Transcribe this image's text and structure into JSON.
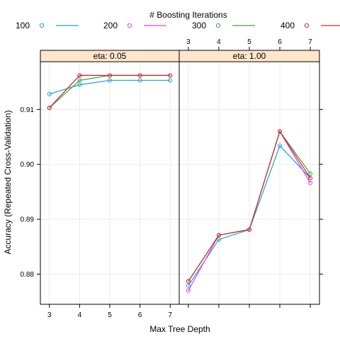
{
  "chart_data": {
    "type": "line",
    "legend": {
      "title": "# Boosting Iterations",
      "placement": "top",
      "entries": [
        {
          "label": "100",
          "color": "#1f9fd6"
        },
        {
          "label": "200",
          "color": "#e83ff0"
        },
        {
          "label": "300",
          "color": "#3aa63a"
        },
        {
          "label": "400",
          "color": "#d12a2a"
        }
      ]
    },
    "xlabel": "Max Tree Depth",
    "ylabel": "Accuracy (Repeated Cross-Validation)",
    "x_ticks": [
      3,
      4,
      5,
      6,
      7
    ],
    "y_ticks": [
      0.88,
      0.89,
      0.9,
      0.91
    ],
    "y_tick_labels": [
      "0.88",
      "0.89",
      "0.90",
      "0.91"
    ],
    "ylim": [
      0.8745,
      0.9187
    ],
    "xlim": [
      2.7,
      7.3
    ],
    "grid": true,
    "panels": [
      {
        "strip": "eta: 0.05",
        "series": [
          {
            "name": "100",
            "x": [
              3,
              4,
              5,
              6,
              7
            ],
            "y": [
              0.9128,
              0.9145,
              0.9153,
              0.9153,
              0.9153
            ]
          },
          {
            "name": "200",
            "x": [
              3,
              4,
              5,
              6,
              7
            ],
            "y": [
              0.9103,
              0.9162,
              0.9162,
              0.9162,
              0.9162
            ]
          },
          {
            "name": "300",
            "x": [
              3,
              4,
              5,
              6,
              7
            ],
            "y": [
              0.9103,
              0.9153,
              0.9162,
              0.9162,
              0.9162
            ]
          },
          {
            "name": "400",
            "x": [
              3,
              4,
              5,
              6,
              7
            ],
            "y": [
              0.9103,
              0.9162,
              0.9162,
              0.9162,
              0.9162
            ]
          }
        ]
      },
      {
        "strip": "eta: 1.00",
        "series": [
          {
            "name": "100",
            "x": [
              3,
              4,
              5,
              6,
              7
            ],
            "y": [
              0.8779,
              0.8863,
              0.8881,
              0.9034,
              0.8975
            ]
          },
          {
            "name": "200",
            "x": [
              3,
              4,
              5,
              6,
              7
            ],
            "y": [
              0.877,
              0.8871,
              0.8881,
              0.906,
              0.8966
            ]
          },
          {
            "name": "300",
            "x": [
              3,
              4,
              5,
              6,
              7
            ],
            "y": [
              0.8787,
              0.8871,
              0.8881,
              0.906,
              0.8983
            ]
          },
          {
            "name": "400",
            "x": [
              3,
              4,
              5,
              6,
              7
            ],
            "y": [
              0.8787,
              0.8871,
              0.8881,
              0.906,
              0.8975
            ]
          }
        ]
      }
    ]
  }
}
